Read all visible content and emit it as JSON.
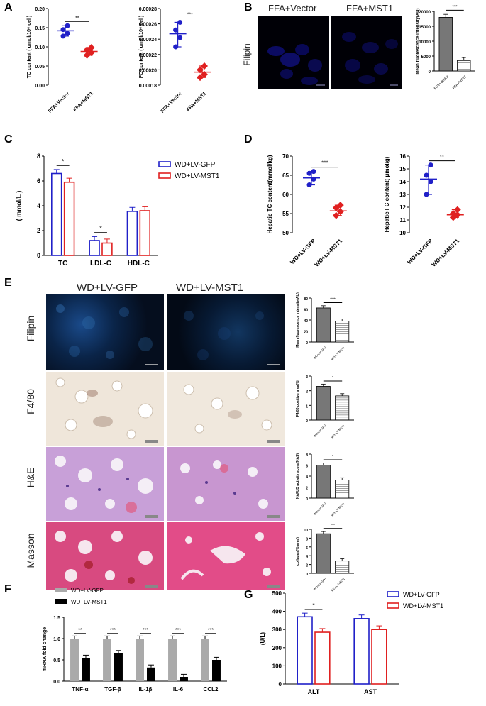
{
  "panel_letters": [
    "A",
    "B",
    "C",
    "D",
    "E",
    "F",
    "G"
  ],
  "sig_labels": {
    "ns2": "**",
    "ns3": "***",
    "ns1": "*",
    "ns4": "****"
  },
  "panelA": {
    "left": {
      "ylabel": "TC content ( umol/10⁶ cel )",
      "yticks": [
        "0.00",
        "0.05",
        "0.10",
        "0.15",
        "0.20"
      ],
      "groups": [
        "FFA+Vector",
        "FFA+MST1"
      ],
      "values": [
        0.142,
        0.088
      ],
      "points": [
        [
          0.128,
          0.135,
          0.145,
          0.155
        ],
        [
          0.078,
          0.085,
          0.092,
          0.098
        ]
      ],
      "sig": "**",
      "ylim": [
        0,
        0.2
      ]
    },
    "right": {
      "ylabel": "FC content ( umol/10⁶ cel )",
      "yticks": [
        "0.00018",
        "0.00020",
        "0.00022",
        "0.00024",
        "0.00026",
        "0.00028"
      ],
      "groups": [
        "FFA+Vector",
        "FFA+MST1"
      ],
      "values": [
        0.000247,
        0.000197
      ],
      "points": [
        [
          0.00023,
          0.000242,
          0.000252,
          0.000262
        ],
        [
          0.00019,
          0.000194,
          0.0002,
          0.000205
        ]
      ],
      "sig": "***",
      "ylim": [
        0.00018,
        0.00028
      ]
    }
  },
  "panelB": {
    "col_headers": [
      "FFA+Vector",
      "FFA+MST1"
    ],
    "row_label": "Filipin",
    "chart": {
      "ylabel": "Mean fluorescence intensity(AU)",
      "yticks": [
        "0",
        "5000",
        "10000",
        "15000",
        "20000"
      ],
      "groups": [
        "FFA+Vector",
        "FFA+MST1"
      ],
      "values": [
        18000,
        3500
      ],
      "sig": "***",
      "ylim": [
        0,
        20000
      ]
    }
  },
  "panelC": {
    "ylabel": "( mmol/L )",
    "yticks": [
      "0",
      "2",
      "4",
      "6",
      "8"
    ],
    "categories": [
      "TC",
      "LDL-C",
      "HDL-C"
    ],
    "legend": [
      "WD+LV-GFP",
      "WD+LV-MST1"
    ],
    "series": [
      {
        "name": "WD+LV-GFP",
        "values": [
          6.6,
          1.2,
          3.55
        ],
        "color": "#2020c8"
      },
      {
        "name": "WD+LV-MST1",
        "values": [
          5.9,
          1.0,
          3.6
        ],
        "color": "#e02020"
      }
    ],
    "sig": [
      "*",
      "*",
      ""
    ],
    "ylim": [
      0,
      8
    ]
  },
  "panelD": {
    "left": {
      "ylabel": "Hepatic TC content(mmol/kg)",
      "yticks": [
        "50",
        "55",
        "60",
        "65",
        "70"
      ],
      "groups": [
        "WD+LV-GFP",
        "WD+LV-MST1"
      ],
      "values": [
        64.3,
        55.7
      ],
      "points": [
        [
          62.5,
          64,
          65.5,
          66
        ],
        [
          54.5,
          55.5,
          56.5,
          57.2
        ]
      ],
      "sig": "***",
      "ylim": [
        50,
        70
      ]
    },
    "right": {
      "ylabel": "Hepatic FC content( μmol/g)",
      "yticks": [
        "10",
        "11",
        "12",
        "13",
        "14",
        "15",
        "16"
      ],
      "groups": [
        "WD+LV-GFP",
        "WD+LV-MST1"
      ],
      "values": [
        14.2,
        11.4
      ],
      "points": [
        [
          13,
          14,
          14.5,
          15.3
        ],
        [
          11.2,
          11.4,
          11.5,
          11.8
        ]
      ],
      "sig": "**",
      "ylim": [
        10,
        16
      ]
    }
  },
  "panelE": {
    "col_headers": [
      "WD+LV-GFP",
      "WD+LV-MST1"
    ],
    "rows": [
      {
        "label": "Filipin",
        "chart": {
          "ylabel": "Mean fluorescence intensity(AU)",
          "yticks": [
            "0",
            "20",
            "40",
            "60",
            "80"
          ],
          "ylim": [
            0,
            80
          ],
          "values": [
            62,
            38
          ],
          "sig": "****"
        }
      },
      {
        "label": "F4/80",
        "chart": {
          "ylabel": "F4/80 positive area(%)",
          "yticks": [
            "0",
            "1",
            "2",
            "3"
          ],
          "ylim": [
            0,
            3
          ],
          "values": [
            2.3,
            1.65
          ],
          "sig": "*"
        }
      },
      {
        "label": "H&E",
        "chart": {
          "ylabel": "NAFLD activity score(NAS)",
          "yticks": [
            "0",
            "2",
            "4",
            "6",
            "8"
          ],
          "ylim": [
            0,
            8
          ],
          "values": [
            6.0,
            3.3
          ],
          "sig": "*"
        }
      },
      {
        "label": "Masson",
        "chart": {
          "ylabel": "collagen(% area)",
          "yticks": [
            "0",
            "2",
            "4",
            "6",
            "8",
            "10"
          ],
          "ylim": [
            0,
            10
          ],
          "values": [
            9.0,
            2.8
          ],
          "sig": "***"
        }
      }
    ],
    "groups": [
      "WD+LV-GFP",
      "WD+LV-MST1"
    ]
  },
  "panelF": {
    "ylabel": "mRNA fold change",
    "yticks": [
      "0.0",
      "0.5",
      "1.0",
      "1.5"
    ],
    "categories": [
      "TNF-α",
      "TGF-β",
      "IL-1β",
      "IL-6",
      "CCL2"
    ],
    "legend": [
      "WD+LV-GFP",
      "WD+LV-MST1"
    ],
    "series": [
      {
        "name": "WD+LV-GFP",
        "values": [
          1.0,
          1.0,
          1.0,
          1.0,
          1.0
        ],
        "color": "#aaaaaa"
      },
      {
        "name": "WD+LV-MST1",
        "values": [
          0.55,
          0.66,
          0.32,
          0.1,
          0.5
        ],
        "color": "#000000"
      }
    ],
    "sig": [
      "**",
      "***",
      "***",
      "***",
      "***"
    ],
    "ylim": [
      0,
      1.5
    ]
  },
  "panelG": {
    "ylabel": "(U/L)",
    "yticks": [
      "0",
      "100",
      "200",
      "300",
      "400",
      "500"
    ],
    "categories": [
      "ALT",
      "AST"
    ],
    "legend": [
      "WD+LV-GFP",
      "WD+LV-MST1"
    ],
    "series": [
      {
        "name": "WD+LV-GFP",
        "values": [
          370,
          360
        ],
        "color": "#2020c8"
      },
      {
        "name": "WD+LV-MST1",
        "values": [
          285,
          300
        ],
        "color": "#e02020"
      }
    ],
    "sig": [
      "*",
      ""
    ],
    "ylim": [
      0,
      500
    ]
  },
  "chart_data": [
    {
      "type": "scatter",
      "ylabel": "TC content ( umol/10⁶ cel )",
      "categories": [
        "FFA+Vector",
        "FFA+MST1"
      ],
      "values": [
        0.142,
        0.088
      ],
      "ylim": [
        0,
        0.2
      ]
    },
    {
      "type": "scatter",
      "ylabel": "FC content ( umol/10⁶ cel )",
      "categories": [
        "FFA+Vector",
        "FFA+MST1"
      ],
      "values": [
        0.000247,
        0.000197
      ],
      "ylim": [
        0.00018,
        0.00028
      ]
    },
    {
      "type": "bar",
      "ylabel": "Mean fluorescence intensity(AU)",
      "categories": [
        "FFA+Vector",
        "FFA+MST1"
      ],
      "values": [
        18000,
        3500
      ],
      "ylim": [
        0,
        20000
      ]
    },
    {
      "type": "bar",
      "ylabel": "( mmol/L )",
      "categories": [
        "TC",
        "LDL-C",
        "HDL-C"
      ],
      "series": [
        {
          "name": "WD+LV-GFP",
          "values": [
            6.6,
            1.2,
            3.55
          ]
        },
        {
          "name": "WD+LV-MST1",
          "values": [
            5.9,
            1.0,
            3.6
          ]
        }
      ],
      "ylim": [
        0,
        8
      ]
    },
    {
      "type": "scatter",
      "ylabel": "Hepatic TC content(mmol/kg)",
      "categories": [
        "WD+LV-GFP",
        "WD+LV-MST1"
      ],
      "values": [
        64.3,
        55.7
      ],
      "ylim": [
        50,
        70
      ]
    },
    {
      "type": "scatter",
      "ylabel": "Hepatic FC content( μmol/g)",
      "categories": [
        "WD+LV-GFP",
        "WD+LV-MST1"
      ],
      "values": [
        14.2,
        11.4
      ],
      "ylim": [
        10,
        16
      ]
    },
    {
      "type": "bar",
      "ylabel": "mRNA fold change",
      "categories": [
        "TNF-α",
        "TGF-β",
        "IL-1β",
        "IL-6",
        "CCL2"
      ],
      "series": [
        {
          "name": "WD+LV-GFP",
          "values": [
            1,
            1,
            1,
            1,
            1
          ]
        },
        {
          "name": "WD+LV-MST1",
          "values": [
            0.55,
            0.66,
            0.32,
            0.1,
            0.5
          ]
        }
      ],
      "ylim": [
        0,
        1.5
      ]
    },
    {
      "type": "bar",
      "ylabel": "(U/L)",
      "categories": [
        "ALT",
        "AST"
      ],
      "series": [
        {
          "name": "WD+LV-GFP",
          "values": [
            370,
            360
          ]
        },
        {
          "name": "WD+LV-MST1",
          "values": [
            285,
            300
          ]
        }
      ],
      "ylim": [
        0,
        500
      ]
    }
  ]
}
